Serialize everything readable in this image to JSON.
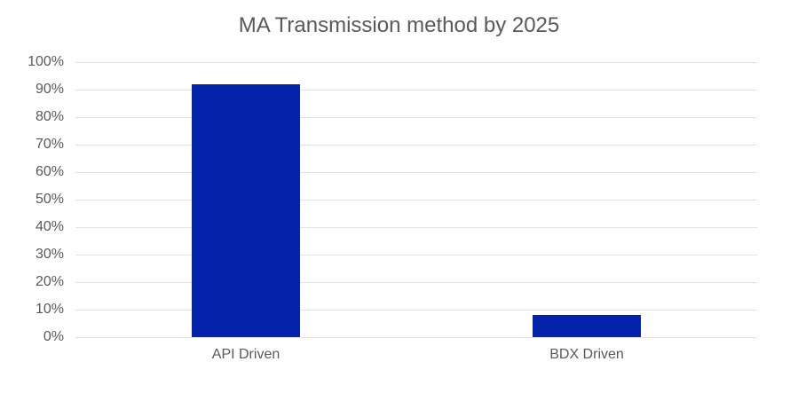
{
  "chart_data": {
    "type": "bar",
    "title": "MA Transmission method by 2025",
    "categories": [
      "API Driven",
      "BDX Driven"
    ],
    "values": [
      92,
      8
    ],
    "xlabel": "",
    "ylabel": "",
    "ylim": [
      0,
      100
    ],
    "ytick_step": 10,
    "ytick_labels": [
      "0%",
      "10%",
      "20%",
      "30%",
      "40%",
      "50%",
      "60%",
      "70%",
      "80%",
      "90%",
      "100%"
    ],
    "grid": true,
    "legend": "none",
    "bar_color": "#0523AA",
    "text_color": "#595959",
    "gridline_color": "#e2e2e2",
    "background_color": "#ffffff"
  }
}
